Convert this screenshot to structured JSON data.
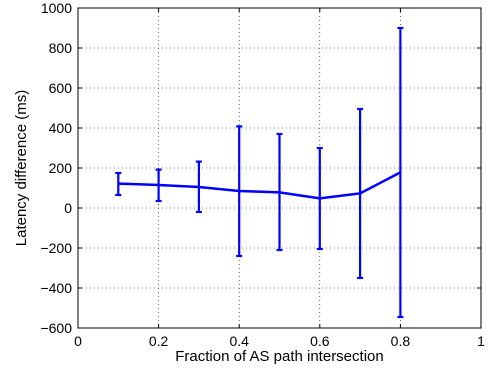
{
  "chart_data": {
    "type": "line",
    "title": "",
    "xlabel": "Fraction of AS path intersection",
    "ylabel": "Latency difference (ms)",
    "xlim": [
      0,
      1
    ],
    "ylim": [
      -600,
      1000
    ],
    "xticks": [
      0,
      0.2,
      0.4,
      0.6,
      0.8,
      1
    ],
    "yticks": [
      -600,
      -400,
      -200,
      0,
      200,
      400,
      600,
      800,
      1000
    ],
    "xtick_labels": [
      "0",
      "0.2",
      "0.4",
      "0.6",
      "0.8",
      "1"
    ],
    "ytick_labels": [
      "−600",
      "−400",
      "−200",
      "0",
      "200",
      "400",
      "600",
      "800",
      "1000"
    ],
    "grid": true,
    "series": [
      {
        "color": "#0000ff",
        "x": [
          0.1,
          0.2,
          0.3,
          0.4,
          0.5,
          0.6,
          0.7,
          0.8
        ],
        "y": [
          122,
          115,
          105,
          85,
          78,
          48,
          73,
          178
        ],
        "error_lower": [
          65,
          35,
          -20,
          -240,
          -210,
          -205,
          -350,
          -545
        ],
        "error_upper": [
          175,
          192,
          232,
          408,
          370,
          300,
          495,
          900
        ]
      }
    ]
  }
}
